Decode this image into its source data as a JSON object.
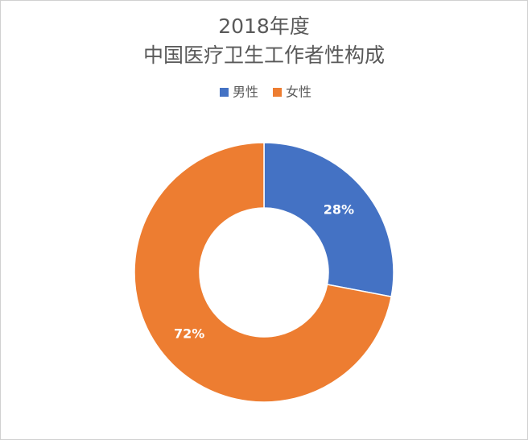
{
  "chart_data": {
    "type": "donut",
    "title": "2018年度",
    "subtitle": "中国医疗卫生工作者性构成",
    "categories": [
      "男性",
      "女性"
    ],
    "values": [
      28,
      72
    ],
    "value_labels": [
      "28%",
      "72%"
    ],
    "colors": [
      "#4472c4",
      "#ed7d31"
    ],
    "legend": "top"
  }
}
